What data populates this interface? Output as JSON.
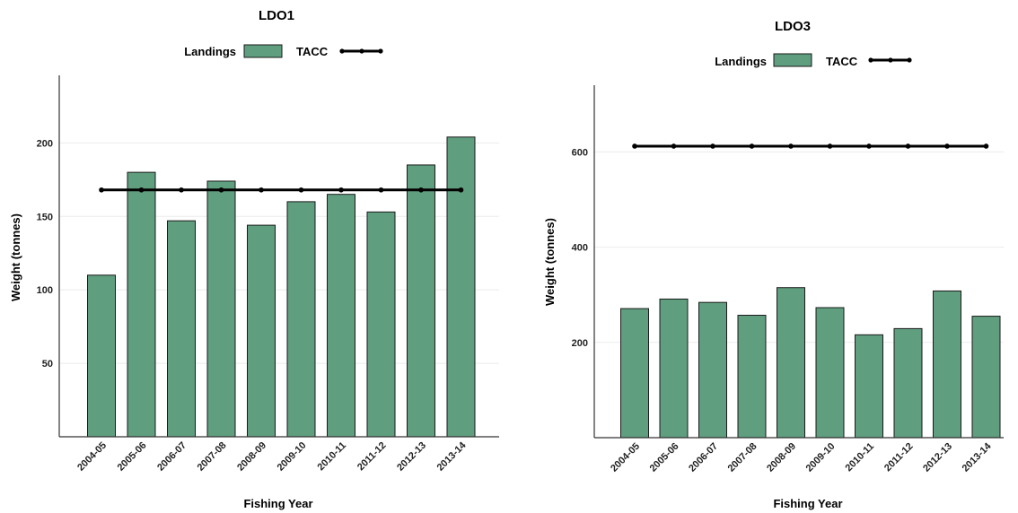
{
  "colors": {
    "landings": "#5f9e7f",
    "tacc": "#000000"
  },
  "chart_data": [
    {
      "type": "bar",
      "title": "LDO1",
      "legend": {
        "landings": "Landings",
        "tacc": "TACC",
        "position": "top"
      },
      "xlabel": "Fishing Year",
      "ylabel": "Weight (tonnes)",
      "ylim": [
        0,
        246
      ],
      "yticks": [
        50,
        100,
        150,
        200
      ],
      "categories": [
        "2004-05",
        "2005-06",
        "2006-07",
        "2007-08",
        "2008-09",
        "2009-10",
        "2010-11",
        "2011-12",
        "2012-13",
        "2013-14"
      ],
      "series": [
        {
          "name": "Landings",
          "kind": "bar",
          "values": [
            110,
            180,
            147,
            174,
            144,
            160,
            165,
            153,
            185,
            204
          ]
        },
        {
          "name": "TACC",
          "kind": "line",
          "values": [
            168,
            168,
            168,
            168,
            168,
            168,
            168,
            168,
            168,
            168
          ]
        }
      ]
    },
    {
      "type": "bar",
      "title": "LDO3",
      "legend": {
        "landings": "Landings",
        "tacc": "TACC",
        "position": "top"
      },
      "xlabel": "Fishing Year",
      "ylabel": "Weight (tonnes)",
      "ylim": [
        0,
        740
      ],
      "yticks": [
        200,
        400,
        600
      ],
      "categories": [
        "2004-05",
        "2005-06",
        "2006-07",
        "2007-08",
        "2008-09",
        "2009-10",
        "2010-11",
        "2011-12",
        "2012-13",
        "2013-14"
      ],
      "series": [
        {
          "name": "Landings",
          "kind": "bar",
          "values": [
            271,
            291,
            284,
            257,
            315,
            273,
            216,
            229,
            308,
            255
          ]
        },
        {
          "name": "TACC",
          "kind": "line",
          "values": [
            612,
            612,
            612,
            612,
            612,
            612,
            612,
            612,
            612,
            612
          ]
        }
      ]
    }
  ]
}
